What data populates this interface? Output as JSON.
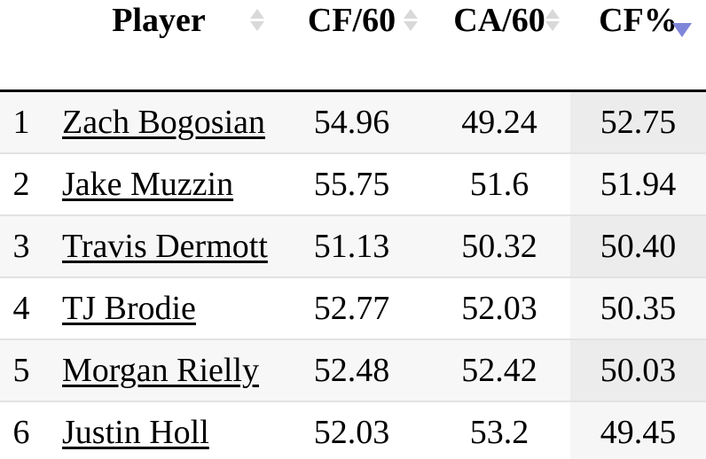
{
  "colors": {
    "active_sort": "#7f85d8",
    "inactive_sort": "#d9d9d9",
    "stripe_row_bg": "#f7f7f7",
    "sorted_column_bg_odd": "#ececec",
    "sorted_column_bg_even": "#f6f6f6",
    "row_divider": "#e2e2e2",
    "header_rule": "#000000"
  },
  "table": {
    "columns": [
      {
        "id": "rank",
        "label": "",
        "sortable": false,
        "sort": "none"
      },
      {
        "id": "player",
        "label": "Player",
        "sortable": true,
        "sort": "none"
      },
      {
        "id": "cf60",
        "label": "CF/60",
        "sortable": true,
        "sort": "none"
      },
      {
        "id": "ca60",
        "label": "CA/60",
        "sortable": true,
        "sort": "none"
      },
      {
        "id": "cfpct",
        "label": "CF%",
        "sortable": true,
        "sort": "desc"
      }
    ],
    "rows": [
      {
        "rank": "1",
        "player": "Zach Bogosian",
        "cf60": "54.96",
        "ca60": "49.24",
        "cfpct": "52.75"
      },
      {
        "rank": "2",
        "player": "Jake Muzzin",
        "cf60": "55.75",
        "ca60": "51.6",
        "cfpct": "51.94"
      },
      {
        "rank": "3",
        "player": "Travis Dermott",
        "cf60": "51.13",
        "ca60": "50.32",
        "cfpct": "50.40"
      },
      {
        "rank": "4",
        "player": "TJ Brodie",
        "cf60": "52.77",
        "ca60": "52.03",
        "cfpct": "50.35"
      },
      {
        "rank": "5",
        "player": "Morgan Rielly",
        "cf60": "52.48",
        "ca60": "52.42",
        "cfpct": "50.03"
      },
      {
        "rank": "6",
        "player": "Justin Holl",
        "cf60": "52.03",
        "ca60": "53.2",
        "cfpct": "49.45"
      }
    ]
  }
}
